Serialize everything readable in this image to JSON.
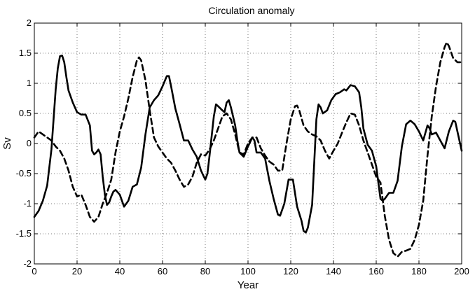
{
  "chart_data": {
    "type": "line",
    "title": "Circulation anomaly",
    "xlabel": "Year",
    "ylabel": "Sv",
    "xlim": [
      0,
      200
    ],
    "ylim": [
      -2,
      2
    ],
    "xticks": [
      0,
      20,
      40,
      60,
      80,
      100,
      120,
      140,
      160,
      180,
      200
    ],
    "yticks": [
      -2,
      -1.5,
      -1,
      -0.5,
      0,
      0.5,
      1,
      1.5,
      2
    ],
    "xtick_labels": [
      "0",
      "20",
      "40",
      "60",
      "80",
      "100",
      "120",
      "140",
      "160",
      "180",
      "200"
    ],
    "ytick_labels": [
      "-2",
      "-1.5",
      "-1",
      "-0.5",
      "0",
      "0.5",
      "1",
      "1.5",
      "2"
    ],
    "grid": true,
    "series": [
      {
        "style": "solid",
        "color": "#000000",
        "points": [
          [
            0,
            -1.22
          ],
          [
            2,
            -1.12
          ],
          [
            4,
            -0.95
          ],
          [
            6,
            -0.7
          ],
          [
            8,
            -0.1
          ],
          [
            10,
            0.9
          ],
          [
            11,
            1.25
          ],
          [
            12,
            1.45
          ],
          [
            13,
            1.46
          ],
          [
            14,
            1.35
          ],
          [
            15,
            1.1
          ],
          [
            16,
            0.88
          ],
          [
            18,
            0.68
          ],
          [
            20,
            0.52
          ],
          [
            22,
            0.48
          ],
          [
            24,
            0.48
          ],
          [
            26,
            0.3
          ],
          [
            27,
            -0.12
          ],
          [
            28,
            -0.18
          ],
          [
            29,
            -0.15
          ],
          [
            30,
            -0.1
          ],
          [
            31,
            -0.18
          ],
          [
            32,
            -0.55
          ],
          [
            33,
            -0.85
          ],
          [
            34,
            -1.02
          ],
          [
            35,
            -0.98
          ],
          [
            36,
            -0.88
          ],
          [
            37,
            -0.8
          ],
          [
            38,
            -0.77
          ],
          [
            40,
            -0.85
          ],
          [
            42,
            -1.05
          ],
          [
            44,
            -0.95
          ],
          [
            46,
            -0.72
          ],
          [
            48,
            -0.68
          ],
          [
            50,
            -0.4
          ],
          [
            52,
            0.15
          ],
          [
            54,
            0.6
          ],
          [
            56,
            0.72
          ],
          [
            58,
            0.8
          ],
          [
            60,
            0.95
          ],
          [
            62,
            1.12
          ],
          [
            63,
            1.12
          ],
          [
            64,
            0.95
          ],
          [
            66,
            0.58
          ],
          [
            68,
            0.32
          ],
          [
            70,
            0.05
          ],
          [
            72,
            0.05
          ],
          [
            74,
            -0.1
          ],
          [
            76,
            -0.22
          ],
          [
            78,
            -0.45
          ],
          [
            80,
            -0.6
          ],
          [
            81,
            -0.5
          ],
          [
            82,
            -0.2
          ],
          [
            84,
            0.45
          ],
          [
            85,
            0.65
          ],
          [
            86,
            0.62
          ],
          [
            88,
            0.55
          ],
          [
            89,
            0.52
          ],
          [
            90,
            0.68
          ],
          [
            91,
            0.72
          ],
          [
            92,
            0.6
          ],
          [
            94,
            0.3
          ],
          [
            95,
            0.05
          ],
          [
            96,
            -0.15
          ],
          [
            98,
            -0.22
          ],
          [
            100,
            -0.05
          ],
          [
            102,
            0.1
          ],
          [
            103,
            0.05
          ],
          [
            104,
            -0.15
          ],
          [
            106,
            -0.15
          ],
          [
            108,
            -0.25
          ],
          [
            110,
            -0.62
          ],
          [
            112,
            -0.92
          ],
          [
            114,
            -1.18
          ],
          [
            115,
            -1.2
          ],
          [
            117,
            -1.0
          ],
          [
            119,
            -0.6
          ],
          [
            121,
            -0.6
          ],
          [
            123,
            -1.05
          ],
          [
            125,
            -1.28
          ],
          [
            126,
            -1.45
          ],
          [
            127,
            -1.48
          ],
          [
            128,
            -1.4
          ],
          [
            130,
            -1.02
          ],
          [
            131,
            -0.3
          ],
          [
            132,
            0.4
          ],
          [
            133,
            0.65
          ],
          [
            134,
            0.6
          ],
          [
            135,
            0.5
          ],
          [
            137,
            0.55
          ],
          [
            139,
            0.72
          ],
          [
            141,
            0.82
          ],
          [
            143,
            0.85
          ],
          [
            145,
            0.9
          ],
          [
            146,
            0.88
          ],
          [
            148,
            0.97
          ],
          [
            150,
            0.95
          ],
          [
            152,
            0.85
          ],
          [
            153,
            0.6
          ],
          [
            154,
            0.25
          ],
          [
            156,
            -0.02
          ],
          [
            158,
            -0.12
          ],
          [
            160,
            -0.38
          ],
          [
            162,
            -0.92
          ],
          [
            163,
            -0.95
          ],
          [
            164,
            -0.92
          ],
          [
            166,
            -0.82
          ],
          [
            168,
            -0.82
          ],
          [
            170,
            -0.62
          ],
          [
            172,
            -0.05
          ],
          [
            174,
            0.32
          ],
          [
            176,
            0.38
          ],
          [
            178,
            0.32
          ],
          [
            180,
            0.2
          ],
          [
            182,
            0.05
          ],
          [
            184,
            0.3
          ],
          [
            185,
            0.25
          ],
          [
            186,
            0.15
          ],
          [
            188,
            0.18
          ],
          [
            190,
            0.05
          ],
          [
            192,
            -0.08
          ],
          [
            194,
            0.2
          ],
          [
            196,
            0.38
          ],
          [
            197,
            0.36
          ],
          [
            198,
            0.2
          ],
          [
            200,
            -0.12
          ]
        ]
      },
      {
        "style": "dashed",
        "color": "#000000",
        "points": [
          [
            0,
            0.1
          ],
          [
            2,
            0.2
          ],
          [
            4,
            0.15
          ],
          [
            6,
            0.1
          ],
          [
            8,
            0.05
          ],
          [
            10,
            -0.05
          ],
          [
            12,
            -0.12
          ],
          [
            14,
            -0.25
          ],
          [
            16,
            -0.45
          ],
          [
            18,
            -0.72
          ],
          [
            20,
            -0.88
          ],
          [
            22,
            -0.85
          ],
          [
            24,
            -1.02
          ],
          [
            26,
            -1.22
          ],
          [
            28,
            -1.3
          ],
          [
            30,
            -1.22
          ],
          [
            32,
            -1.0
          ],
          [
            34,
            -0.82
          ],
          [
            36,
            -0.6
          ],
          [
            38,
            -0.15
          ],
          [
            40,
            0.2
          ],
          [
            42,
            0.45
          ],
          [
            44,
            0.75
          ],
          [
            46,
            1.1
          ],
          [
            48,
            1.38
          ],
          [
            49,
            1.43
          ],
          [
            50,
            1.38
          ],
          [
            52,
            1.05
          ],
          [
            54,
            0.55
          ],
          [
            56,
            0.1
          ],
          [
            58,
            -0.05
          ],
          [
            60,
            -0.15
          ],
          [
            62,
            -0.25
          ],
          [
            64,
            -0.32
          ],
          [
            66,
            -0.45
          ],
          [
            68,
            -0.6
          ],
          [
            70,
            -0.72
          ],
          [
            72,
            -0.68
          ],
          [
            74,
            -0.55
          ],
          [
            76,
            -0.32
          ],
          [
            78,
            -0.18
          ],
          [
            80,
            -0.2
          ],
          [
            82,
            -0.1
          ],
          [
            84,
            0.05
          ],
          [
            86,
            0.25
          ],
          [
            88,
            0.45
          ],
          [
            90,
            0.5
          ],
          [
            92,
            0.4
          ],
          [
            94,
            0.15
          ],
          [
            96,
            -0.15
          ],
          [
            98,
            -0.18
          ],
          [
            100,
            0.0
          ],
          [
            102,
            0.1
          ],
          [
            104,
            0.1
          ],
          [
            106,
            -0.08
          ],
          [
            108,
            -0.2
          ],
          [
            110,
            -0.3
          ],
          [
            112,
            -0.35
          ],
          [
            114,
            -0.45
          ],
          [
            116,
            -0.45
          ],
          [
            118,
            0.0
          ],
          [
            120,
            0.4
          ],
          [
            122,
            0.62
          ],
          [
            123,
            0.63
          ],
          [
            124,
            0.55
          ],
          [
            126,
            0.3
          ],
          [
            128,
            0.2
          ],
          [
            130,
            0.15
          ],
          [
            132,
            0.12
          ],
          [
            134,
            0.05
          ],
          [
            136,
            -0.12
          ],
          [
            138,
            -0.25
          ],
          [
            140,
            -0.12
          ],
          [
            142,
            0.0
          ],
          [
            144,
            0.18
          ],
          [
            146,
            0.35
          ],
          [
            148,
            0.5
          ],
          [
            150,
            0.48
          ],
          [
            152,
            0.3
          ],
          [
            154,
            0.05
          ],
          [
            156,
            -0.15
          ],
          [
            158,
            -0.35
          ],
          [
            160,
            -0.55
          ],
          [
            162,
            -0.65
          ],
          [
            164,
            -1.2
          ],
          [
            166,
            -1.6
          ],
          [
            168,
            -1.82
          ],
          [
            170,
            -1.88
          ],
          [
            172,
            -1.8
          ],
          [
            174,
            -1.78
          ],
          [
            176,
            -1.75
          ],
          [
            178,
            -1.6
          ],
          [
            180,
            -1.35
          ],
          [
            182,
            -0.95
          ],
          [
            184,
            -0.2
          ],
          [
            186,
            0.45
          ],
          [
            188,
            0.95
          ],
          [
            190,
            1.35
          ],
          [
            192,
            1.6
          ],
          [
            193,
            1.68
          ],
          [
            194,
            1.62
          ],
          [
            196,
            1.42
          ],
          [
            198,
            1.35
          ],
          [
            200,
            1.35
          ]
        ]
      }
    ]
  }
}
